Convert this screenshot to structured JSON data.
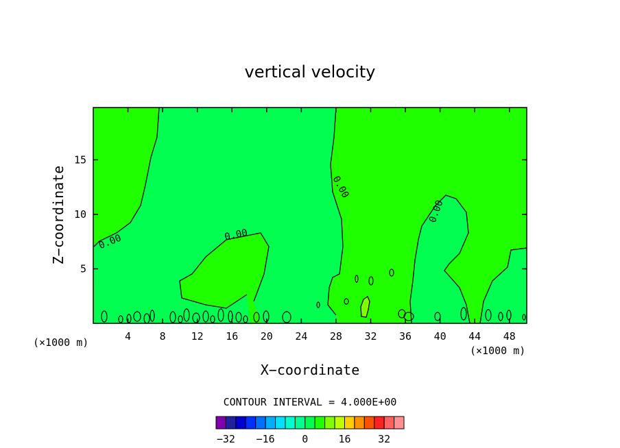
{
  "chart_data": {
    "type": "heatmap",
    "title": "vertical velocity",
    "xlabel": "X−coordinate",
    "ylabel": "Z−coordinate",
    "x_unit": "(×1000 m)",
    "y_unit": "(×1000 m)",
    "xlim": [
      0,
      50
    ],
    "ylim": [
      0,
      19.8
    ],
    "x_ticks": [
      4,
      8,
      12,
      16,
      20,
      24,
      28,
      32,
      36,
      40,
      44,
      48
    ],
    "y_ticks": [
      5,
      10,
      15
    ],
    "x_tick_labels": [
      "4",
      "8",
      "12",
      "16",
      "20",
      "24",
      "28",
      "32",
      "36",
      "40",
      "44",
      "48"
    ],
    "y_tick_labels": [
      "5",
      "10",
      "15"
    ],
    "contour_interval_text": "CONTOUR INTERVAL = 4.000E+00",
    "contour_label": "0.00",
    "colorbar": {
      "colors": [
        "#8000b0",
        "#2020a0",
        "#0000d0",
        "#0030ff",
        "#0070ff",
        "#00b0ff",
        "#00e0ff",
        "#00ffd0",
        "#00ff90",
        "#00ff50",
        "#20ff00",
        "#80ff00",
        "#c0ff00",
        "#ffd000",
        "#ff9000",
        "#ff5000",
        "#ff2020",
        "#ff6060",
        "#ff9090"
      ],
      "tick_values": [
        -32,
        -16,
        0,
        16,
        32
      ],
      "tick_labels": [
        "−32",
        "−16",
        "0",
        "16",
        "32"
      ]
    },
    "field_colors": {
      "positive": "#20ff00",
      "negative": "#00ff50",
      "strong_positive": "#80ff00"
    }
  }
}
